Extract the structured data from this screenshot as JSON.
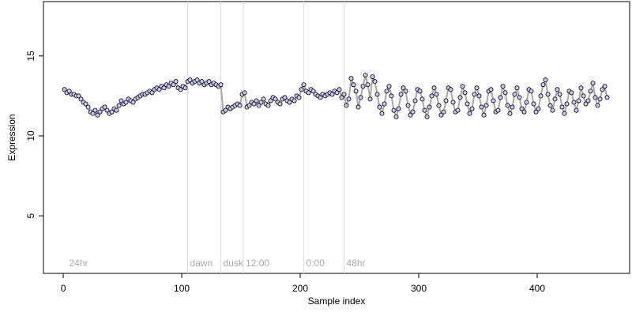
{
  "chart_data": {
    "type": "scatter",
    "xlabel": "Sample index",
    "ylabel": "Expression",
    "xlim": [
      -16.7,
      478
    ],
    "ylim": [
      1.4,
      18.4
    ],
    "xticks": [
      0,
      100,
      200,
      300,
      400
    ],
    "yticks": [
      5,
      10,
      15
    ],
    "point_color": "#c8c8f0",
    "line_color": "#a8a8a8",
    "vline_color": "#dddddd",
    "annotations": [
      {
        "x": 3,
        "label": "24hr",
        "line": false
      },
      {
        "x": 105,
        "label": "dawn",
        "line": true
      },
      {
        "x": 133,
        "label": "dusk",
        "line": true
      },
      {
        "x": 152,
        "label": "12:00",
        "line": true
      },
      {
        "x": 203,
        "label": "0:00",
        "line": true
      },
      {
        "x": 237,
        "label": "48hr",
        "line": true
      }
    ],
    "x": [
      1,
      3,
      5,
      7,
      9,
      11,
      13,
      15,
      17,
      19,
      21,
      23,
      25,
      27,
      29,
      31,
      33,
      35,
      37,
      39,
      41,
      43,
      45,
      47,
      49,
      51,
      53,
      55,
      57,
      59,
      61,
      63,
      65,
      67,
      69,
      71,
      73,
      75,
      77,
      79,
      81,
      83,
      85,
      87,
      89,
      91,
      93,
      95,
      97,
      99,
      101,
      103,
      105,
      107,
      109,
      111,
      113,
      115,
      117,
      119,
      121,
      123,
      125,
      127,
      129,
      131,
      133,
      135,
      137,
      139,
      141,
      143,
      145,
      147,
      149,
      151,
      153,
      155,
      157,
      159,
      161,
      163,
      165,
      167,
      169,
      171,
      173,
      175,
      177,
      179,
      181,
      183,
      185,
      187,
      189,
      191,
      193,
      195,
      197,
      199,
      201,
      203,
      205,
      207,
      209,
      211,
      213,
      215,
      217,
      219,
      221,
      223,
      225,
      227,
      229,
      231,
      233,
      235,
      237,
      239,
      241,
      243,
      245,
      247,
      249,
      251,
      253,
      255,
      257,
      259,
      261,
      263,
      265,
      267,
      269,
      271,
      273,
      275,
      277,
      279,
      281,
      283,
      285,
      287,
      289,
      291,
      293,
      295,
      297,
      299,
      301,
      303,
      305,
      307,
      309,
      311,
      313,
      315,
      317,
      319,
      321,
      323,
      325,
      327,
      329,
      331,
      333,
      335,
      337,
      339,
      341,
      343,
      345,
      347,
      349,
      351,
      353,
      355,
      357,
      359,
      361,
      363,
      365,
      367,
      369,
      371,
      373,
      375,
      377,
      379,
      381,
      383,
      385,
      387,
      389,
      391,
      393,
      395,
      397,
      399,
      401,
      403,
      405,
      407,
      409,
      411,
      413,
      415,
      417,
      419,
      421,
      423,
      425,
      427,
      429,
      431,
      433,
      435,
      437,
      439,
      441,
      443,
      445,
      447,
      449,
      451,
      453,
      455,
      457,
      459
    ],
    "y": [
      12.9,
      12.7,
      12.8,
      12.6,
      12.6,
      12.5,
      12.5,
      12.3,
      12.1,
      12.0,
      11.8,
      11.5,
      11.4,
      11.6,
      11.3,
      11.5,
      11.7,
      11.8,
      11.6,
      11.4,
      11.5,
      11.7,
      11.6,
      11.9,
      12.2,
      12.0,
      12.1,
      12.3,
      12.2,
      12.1,
      12.3,
      12.4,
      12.5,
      12.6,
      12.6,
      12.7,
      12.8,
      12.7,
      12.9,
      13.0,
      12.9,
      13.1,
      13.0,
      13.2,
      13.1,
      13.3,
      13.2,
      13.4,
      13.0,
      12.9,
      13.1,
      13.0,
      13.4,
      13.5,
      13.3,
      13.4,
      13.5,
      13.3,
      13.4,
      13.2,
      13.3,
      13.4,
      13.2,
      13.3,
      13.2,
      13.1,
      13.2,
      11.5,
      11.6,
      11.8,
      11.7,
      11.8,
      11.9,
      12.0,
      11.9,
      12.6,
      12.7,
      11.8,
      11.9,
      12.1,
      12.0,
      12.2,
      11.9,
      12.1,
      12.3,
      12.0,
      11.9,
      12.2,
      12.4,
      12.3,
      12.1,
      12.0,
      12.3,
      12.4,
      12.2,
      12.1,
      12.3,
      12.2,
      12.5,
      12.4,
      12.9,
      13.2,
      12.8,
      12.7,
      12.9,
      12.8,
      12.6,
      12.5,
      12.4,
      12.6,
      12.5,
      12.6,
      12.7,
      12.6,
      12.8,
      12.7,
      12.9,
      12.4,
      12.6,
      11.9,
      12.3,
      13.6,
      13.2,
      12.8,
      11.8,
      12.4,
      13.1,
      13.8,
      13.2,
      12.3,
      13.7,
      13.4,
      12.6,
      11.8,
      11.4,
      12.0,
      12.8,
      13.1,
      12.5,
      11.6,
      11.2,
      11.7,
      12.6,
      13.0,
      12.8,
      11.9,
      11.3,
      11.5,
      12.2,
      12.9,
      12.8,
      12.3,
      11.6,
      11.2,
      11.8,
      12.5,
      13.0,
      12.6,
      11.9,
      11.3,
      11.5,
      12.2,
      13.0,
      12.9,
      12.1,
      11.5,
      11.6,
      12.4,
      13.1,
      12.7,
      12.0,
      11.4,
      11.7,
      12.6,
      13.0,
      12.5,
      11.8,
      11.3,
      11.9,
      12.8,
      12.9,
      12.2,
      11.5,
      11.6,
      12.4,
      13.1,
      12.7,
      11.9,
      11.4,
      11.8,
      12.6,
      13.0,
      12.4,
      11.7,
      11.5,
      12.1,
      12.9,
      12.8,
      12.0,
      11.5,
      11.7,
      12.5,
      13.2,
      13.5,
      12.6,
      11.9,
      11.6,
      12.3,
      12.9,
      12.6,
      11.8,
      11.4,
      12.0,
      12.8,
      12.7,
      12.1,
      11.6,
      12.2,
      13.0,
      12.5,
      12.0,
      12.2,
      12.8,
      13.3,
      12.4,
      11.9,
      12.3,
      12.9,
      13.1,
      12.4
    ]
  }
}
